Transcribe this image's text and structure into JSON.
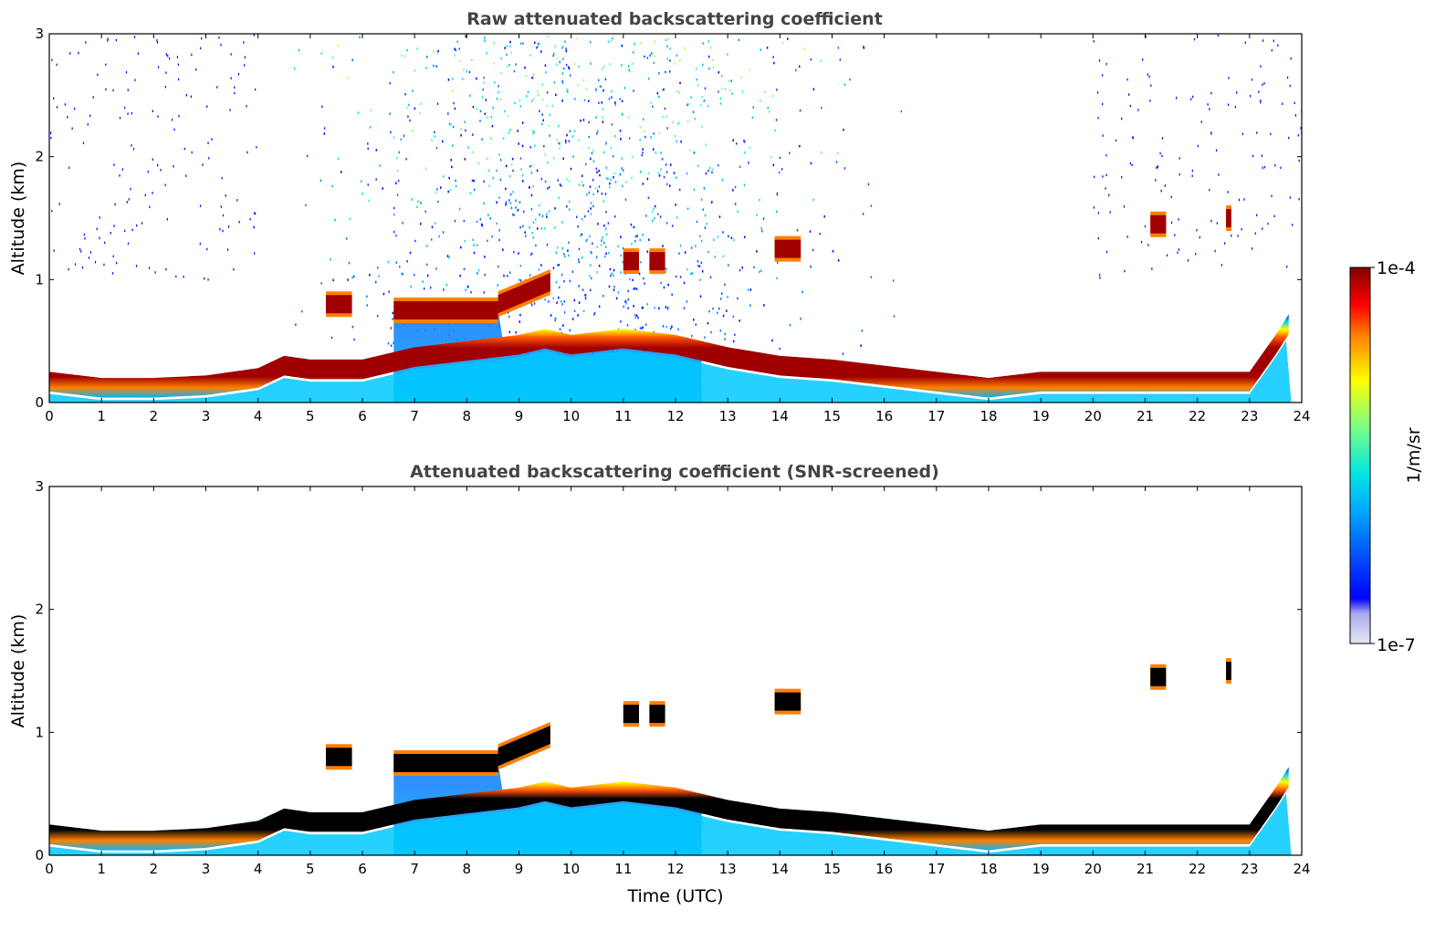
{
  "colorbar": {
    "max_label": "1e-4",
    "min_label": "1e-7",
    "unit_label": "1/m/sr",
    "range": [
      1e-07,
      0.0001
    ],
    "scale": "log",
    "colormap": "jet",
    "low_end_colors": [
      "#e6e6f5",
      "#c9c9f2",
      "#a8a8f0"
    ]
  },
  "chart_data": [
    {
      "type": "heatmap",
      "title": "Raw attenuated backscattering coefficient",
      "xlabel": "",
      "ylabel": "Altitude (km)",
      "xlim": [
        0,
        24
      ],
      "ylim": [
        0,
        3
      ],
      "x_ticks": [
        "0",
        "1",
        "2",
        "3",
        "4",
        "5",
        "6",
        "7",
        "8",
        "9",
        "10",
        "11",
        "12",
        "13",
        "14",
        "15",
        "16",
        "17",
        "18",
        "19",
        "20",
        "21",
        "22",
        "23",
        "24"
      ],
      "y_ticks": [
        "0",
        "1",
        "2",
        "3"
      ],
      "boundary_layer_top_km": {
        "time": [
          0,
          1,
          2,
          3,
          4,
          4.5,
          5,
          6,
          6.5,
          7,
          8,
          9,
          9.5,
          10,
          11,
          12,
          13,
          14,
          15,
          16,
          17,
          18,
          19,
          20,
          21,
          22,
          23,
          23.5,
          23.8
        ],
        "height": [
          0.15,
          0.1,
          0.1,
          0.12,
          0.18,
          0.28,
          0.25,
          0.25,
          0.3,
          0.35,
          0.4,
          0.45,
          0.5,
          0.45,
          0.5,
          0.45,
          0.35,
          0.28,
          0.25,
          0.2,
          0.15,
          0.1,
          0.15,
          0.15,
          0.15,
          0.15,
          0.15,
          0.45,
          0.65
        ]
      },
      "cloud_layers": [
        {
          "t0": 6.6,
          "t1": 8.6,
          "height": [
            0.75,
            0.75
          ]
        },
        {
          "t0": 8.6,
          "t1": 9.6,
          "height": [
            0.8,
            0.98
          ]
        },
        {
          "t0": 5.3,
          "t1": 5.8,
          "height": [
            0.8,
            0.8
          ]
        },
        {
          "t0": 11.0,
          "t1": 11.3,
          "height": [
            1.15,
            1.15
          ]
        },
        {
          "t0": 11.5,
          "t1": 11.8,
          "height": [
            1.15,
            1.15
          ]
        },
        {
          "t0": 13.9,
          "t1": 14.4,
          "height": [
            1.25,
            1.25
          ]
        },
        {
          "t0": 21.1,
          "t1": 21.4,
          "height": [
            1.45,
            1.45
          ]
        },
        {
          "t0": 22.55,
          "t1": 22.65,
          "height": [
            1.5,
            1.5
          ]
        }
      ]
    },
    {
      "type": "heatmap",
      "title": "Attenuated backscattering coefficient (SNR-screened)",
      "xlabel": "Time (UTC)",
      "ylabel": "Altitude (km)",
      "xlim": [
        0,
        24
      ],
      "ylim": [
        0,
        3
      ],
      "x_ticks": [
        "0",
        "1",
        "2",
        "3",
        "4",
        "5",
        "6",
        "7",
        "8",
        "9",
        "10",
        "11",
        "12",
        "13",
        "14",
        "15",
        "16",
        "17",
        "18",
        "19",
        "20",
        "21",
        "22",
        "23",
        "24"
      ],
      "y_ticks": [
        "0",
        "1",
        "2",
        "3"
      ],
      "boundary_layer_top_km": {
        "time": [
          0,
          1,
          2,
          3,
          4,
          4.5,
          5,
          6,
          6.5,
          7,
          8,
          9,
          9.5,
          10,
          11,
          12,
          13,
          14,
          15,
          16,
          17,
          18,
          19,
          20,
          21,
          22,
          23,
          23.5,
          23.8
        ],
        "height": [
          0.15,
          0.1,
          0.1,
          0.12,
          0.18,
          0.28,
          0.25,
          0.25,
          0.3,
          0.35,
          0.4,
          0.45,
          0.5,
          0.45,
          0.5,
          0.45,
          0.35,
          0.28,
          0.25,
          0.2,
          0.15,
          0.1,
          0.15,
          0.15,
          0.15,
          0.15,
          0.15,
          0.45,
          0.65
        ]
      },
      "cloud_layers": [
        {
          "t0": 6.6,
          "t1": 8.6,
          "height": [
            0.75,
            0.75
          ]
        },
        {
          "t0": 8.6,
          "t1": 9.6,
          "height": [
            0.8,
            0.98
          ]
        },
        {
          "t0": 5.3,
          "t1": 5.8,
          "height": [
            0.8,
            0.8
          ]
        },
        {
          "t0": 11.0,
          "t1": 11.3,
          "height": [
            1.15,
            1.15
          ]
        },
        {
          "t0": 11.5,
          "t1": 11.8,
          "height": [
            1.15,
            1.15
          ]
        },
        {
          "t0": 13.9,
          "t1": 14.4,
          "height": [
            1.25,
            1.25
          ]
        },
        {
          "t0": 21.1,
          "t1": 21.4,
          "height": [
            1.45,
            1.45
          ]
        },
        {
          "t0": 22.55,
          "t1": 22.65,
          "height": [
            1.5,
            1.5
          ]
        }
      ]
    }
  ]
}
